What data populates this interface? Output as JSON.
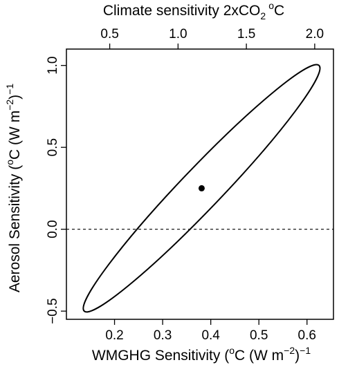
{
  "chart_data": {
    "type": "scatter",
    "xlabel": "WMGHG Sensitivity (",
    "xlabel_superscript_o": "o",
    "xlabel_unit_C": "C (W m",
    "xlabel_exponent": "−2",
    "xlabel_end": ")",
    "xlabel_end_exponent": "−1",
    "ylabel": "Aerosol Sensitivity (",
    "ylabel_superscript_o": "o",
    "ylabel_unit_C": "C (W m",
    "ylabel_exponent": "−2",
    "ylabel_end": ")",
    "ylabel_end_exponent": "−1",
    "top_axis_label": "Climate sensitivity 2xCO",
    "top_axis_label_subscript": "2",
    "top_axis_label_superscript_o": "o",
    "top_axis_label_unit": "C",
    "xlim": [
      0.1,
      0.655
    ],
    "ylim": [
      -0.55,
      1.1
    ],
    "x_ticks": [
      0.2,
      0.3,
      0.4,
      0.5,
      0.6
    ],
    "x_tick_labels": [
      "0.2",
      "0.3",
      "0.4",
      "0.5",
      "0.6"
    ],
    "y_ticks": [
      -0.5,
      0.0,
      0.5,
      1.0
    ],
    "y_tick_labels": [
      "−0.5",
      "0.0",
      "0.5",
      "1.0"
    ],
    "top_ticks": [
      0.5,
      1.0,
      1.5,
      2.0
    ],
    "top_tick_labels": [
      "0.5",
      "1.0",
      "1.5",
      "2.0"
    ],
    "top_axis_offset": 0.048,
    "top_axis_scale": 0.284,
    "points": [
      {
        "x": 0.381,
        "y": 0.25
      }
    ],
    "ellipse": {
      "center": [
        0.381,
        0.25
      ],
      "upper_right_tip": [
        0.625,
        1.0
      ],
      "lower_left_tip": [
        0.135,
        -0.5
      ],
      "crosses_zero_at": [
        0.25,
        0.36
      ]
    },
    "reference_line": {
      "y": 0.0,
      "style": "dashed"
    }
  }
}
